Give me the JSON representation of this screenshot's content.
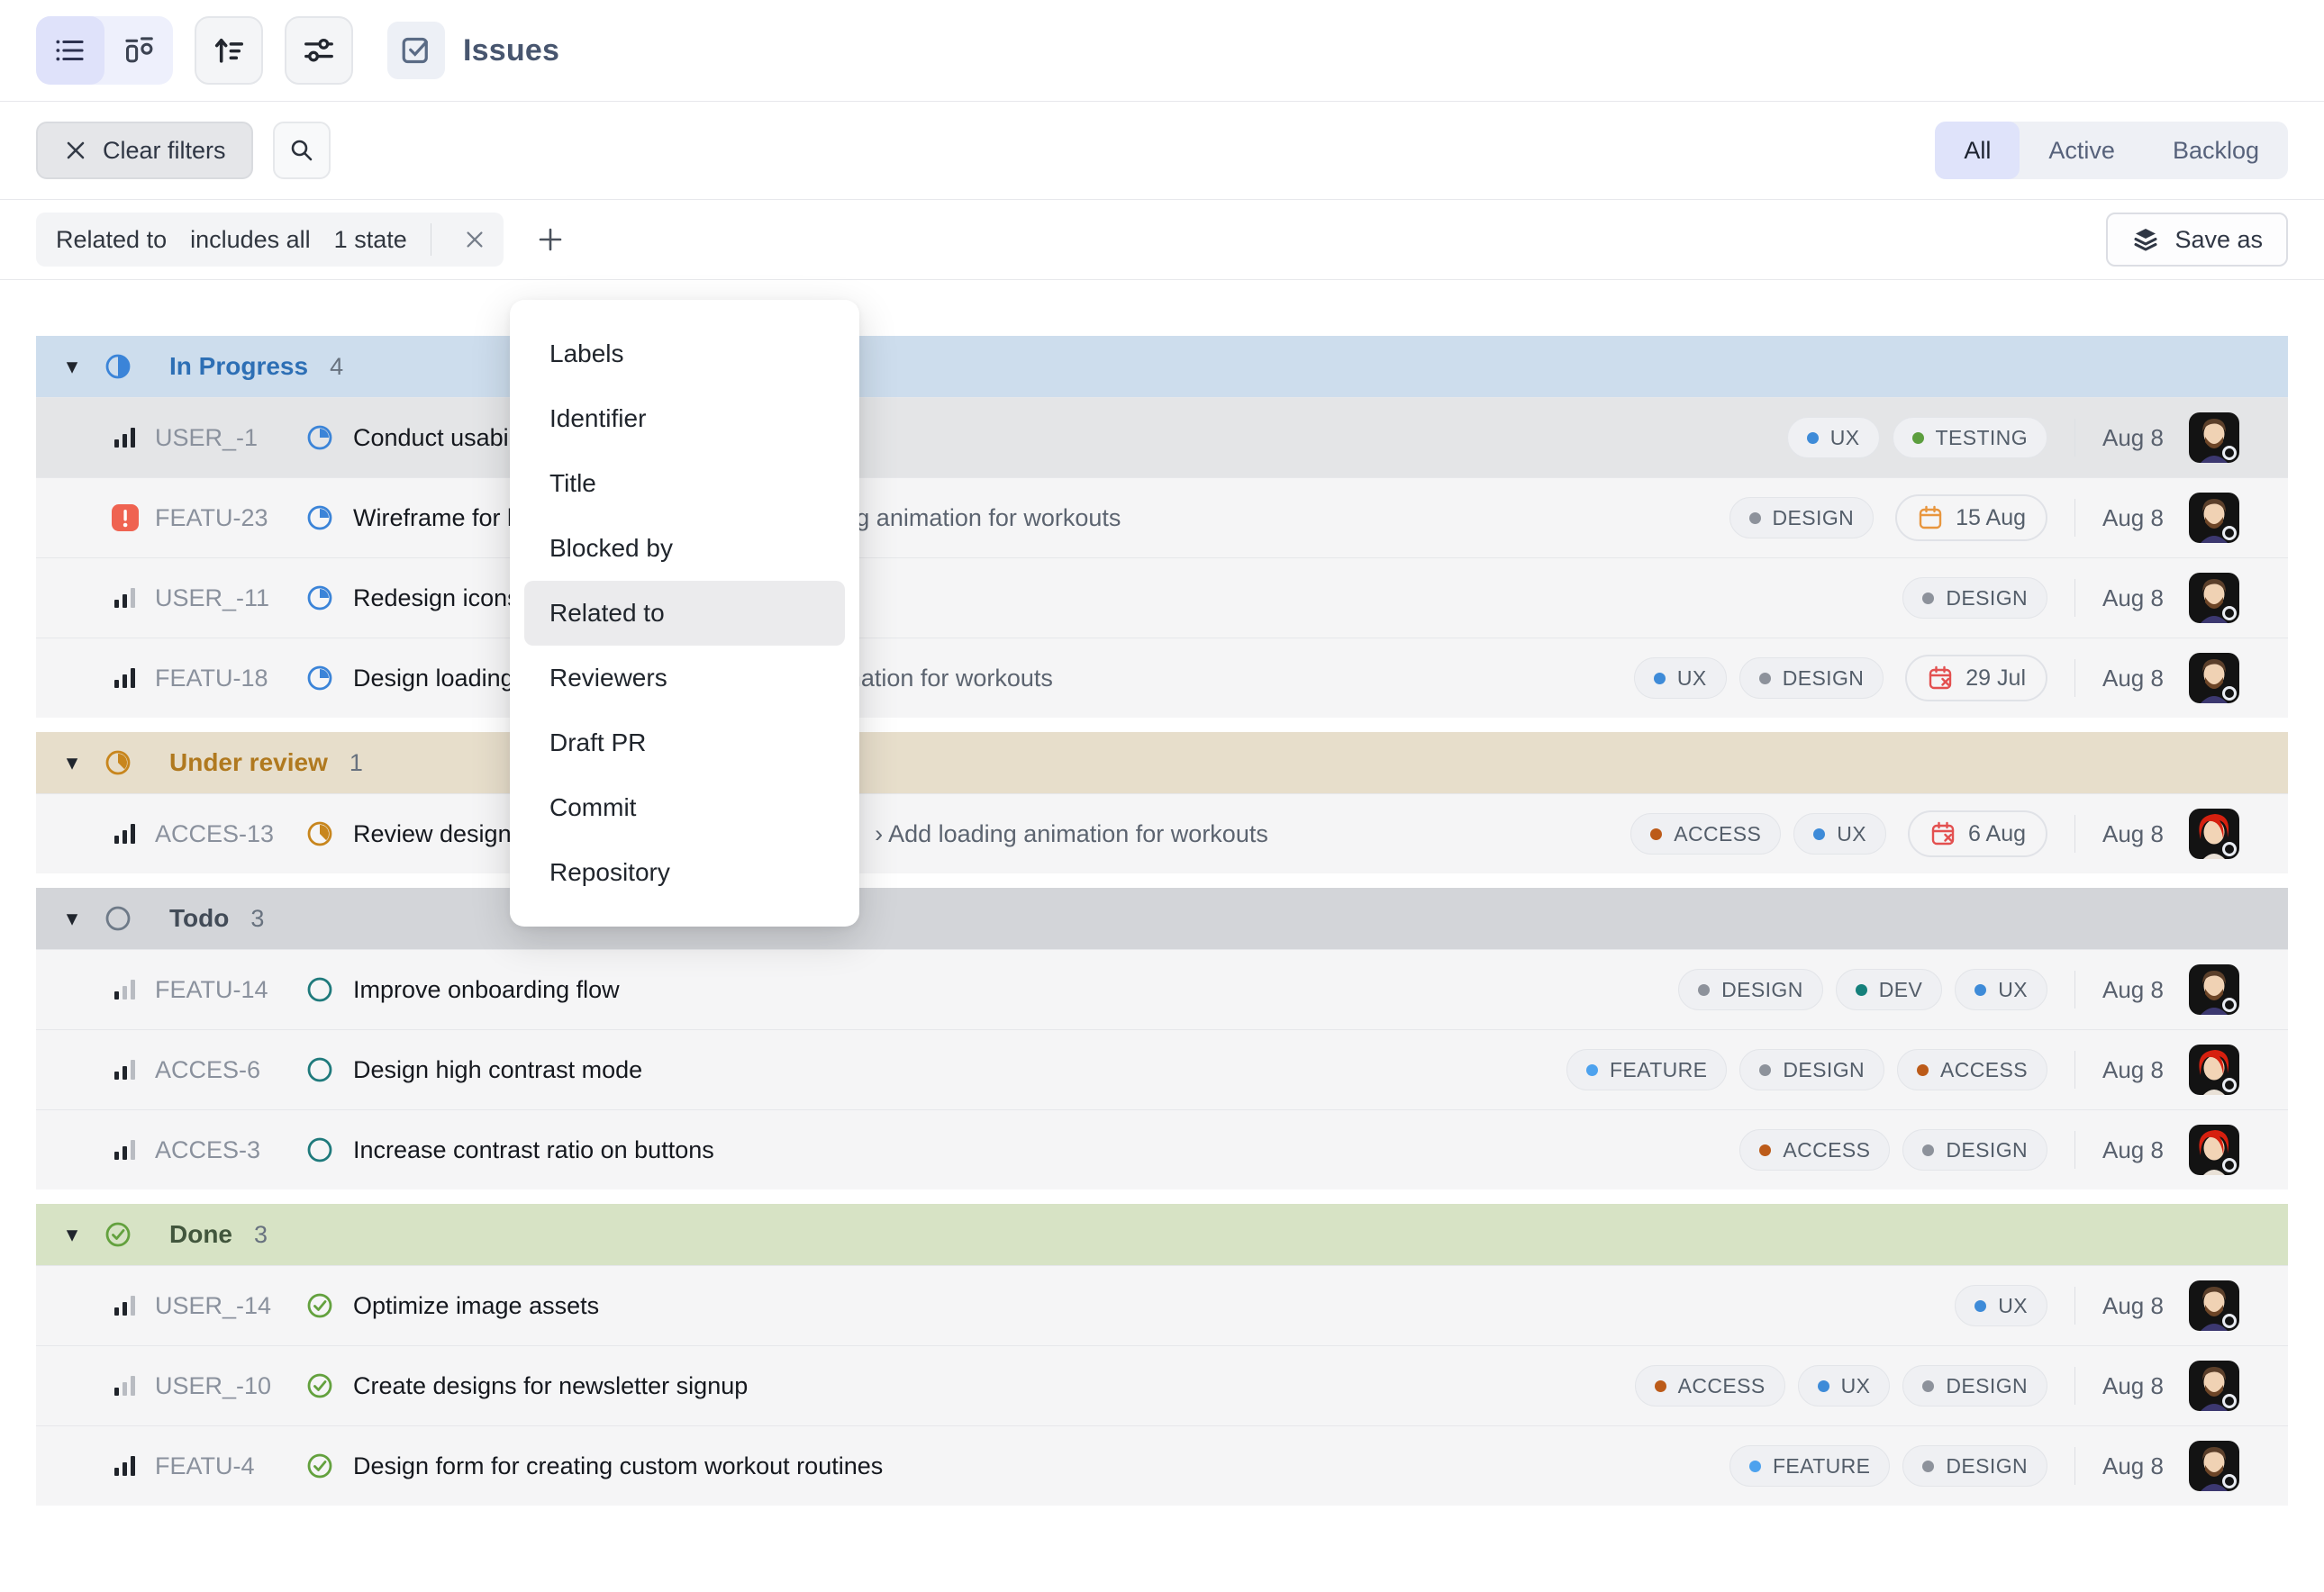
{
  "header": {
    "title": "Issues"
  },
  "filter_bar": {
    "clear_filters": "Clear filters",
    "tabs": [
      "All",
      "Active",
      "Backlog"
    ],
    "active_tab": "All"
  },
  "filter_chip": {
    "field": "Related to",
    "operator": "includes all",
    "value": "1 state"
  },
  "save_as_label": "Save as",
  "dropdown": {
    "items": [
      "Labels",
      "Identifier",
      "Title",
      "Blocked by",
      "Related to",
      "Reviewers",
      "Draft PR",
      "Commit",
      "Repository"
    ],
    "highlighted": "Related to"
  },
  "colors": {
    "groups": {
      "in_progress": {
        "bg": "#cddded",
        "fg": "#2d6fb5",
        "icon": "#3b84d8"
      },
      "under_review": {
        "bg": "#e7decb",
        "fg": "#b0791f",
        "icon": "#c8861d"
      },
      "todo": {
        "bg": "#d3d5d9",
        "fg": "#424b57",
        "icon": "#6e7a88"
      },
      "done": {
        "bg": "#d7e3c5",
        "fg": "#42563d",
        "icon": "#63a13e"
      }
    },
    "row_states": {
      "in_progress": "#3b84d8",
      "under_review": "#c8861d",
      "todo": "#1f7a7c",
      "done": "#63a13e"
    },
    "labels": {
      "UX": "#3e8bd8",
      "TESTING": "#5c9e3e",
      "DESIGN": "#8d929b",
      "DEV": "#15807b",
      "FEATURE": "#4da2ee",
      "ACCESS": "#bc5b19"
    },
    "urgent": "#ef6351",
    "due": {
      "upcoming": "#e8963e",
      "overdue": "#e35050"
    }
  },
  "groups": [
    {
      "name": "In Progress",
      "count": "4",
      "state": "in_progress",
      "rows": [
        {
          "id": "USER_-1",
          "priority": "high",
          "title": "Conduct usability testing",
          "labels": [
            "UX",
            "TESTING"
          ],
          "date": "Aug 8",
          "avatar": "male",
          "selected": true
        },
        {
          "id": "FEATU-23",
          "priority": "urgent",
          "title": "Wireframe for landing page",
          "related": "Add loading animation for workouts",
          "labels": [
            "DESIGN"
          ],
          "due": {
            "text": "15 Aug",
            "type": "upcoming"
          },
          "date": "Aug 8",
          "avatar": "male"
        },
        {
          "id": "USER_-11",
          "priority": "medium",
          "title": "Redesign icons",
          "labels": [
            "DESIGN"
          ],
          "date": "Aug 8",
          "avatar": "male"
        },
        {
          "id": "FEATU-18",
          "priority": "high",
          "title": "Design loading states",
          "related": "Add loading animation for workouts",
          "labels": [
            "UX",
            "DESIGN"
          ],
          "due": {
            "text": "29 Jul",
            "type": "overdue"
          },
          "date": "Aug 8",
          "avatar": "male"
        }
      ]
    },
    {
      "name": "Under review",
      "count": "1",
      "state": "under_review",
      "rows": [
        {
          "id": "ACCES-13",
          "priority": "high",
          "title": "Review designs",
          "related": "Add loading animation for workouts",
          "labels": [
            "ACCESS",
            "UX"
          ],
          "due": {
            "text": "6 Aug",
            "type": "overdue"
          },
          "date": "Aug 8",
          "avatar": "female"
        }
      ]
    },
    {
      "name": "Todo",
      "count": "3",
      "state": "todo",
      "rows": [
        {
          "id": "FEATU-14",
          "priority": "low",
          "title": "Improve onboarding flow",
          "labels": [
            "DESIGN",
            "DEV",
            "UX"
          ],
          "date": "Aug 8",
          "avatar": "male"
        },
        {
          "id": "ACCES-6",
          "priority": "medium",
          "title": "Design high contrast mode",
          "labels": [
            "FEATURE",
            "DESIGN",
            "ACCESS"
          ],
          "date": "Aug 8",
          "avatar": "female"
        },
        {
          "id": "ACCES-3",
          "priority": "medium",
          "title": "Increase contrast ratio on buttons",
          "labels": [
            "ACCESS",
            "DESIGN"
          ],
          "date": "Aug 8",
          "avatar": "female"
        }
      ]
    },
    {
      "name": "Done",
      "count": "3",
      "state": "done",
      "rows": [
        {
          "id": "USER_-14",
          "priority": "medium",
          "title": "Optimize image assets",
          "labels": [
            "UX"
          ],
          "date": "Aug 8",
          "avatar": "male"
        },
        {
          "id": "USER_-10",
          "priority": "low",
          "title": "Create designs for newsletter signup",
          "labels": [
            "ACCESS",
            "UX",
            "DESIGN"
          ],
          "date": "Aug 8",
          "avatar": "male"
        },
        {
          "id": "FEATU-4",
          "priority": "high",
          "title": "Design form for creating custom workout routines",
          "labels": [
            "FEATURE",
            "DESIGN"
          ],
          "date": "Aug 8",
          "avatar": "male"
        }
      ]
    }
  ]
}
